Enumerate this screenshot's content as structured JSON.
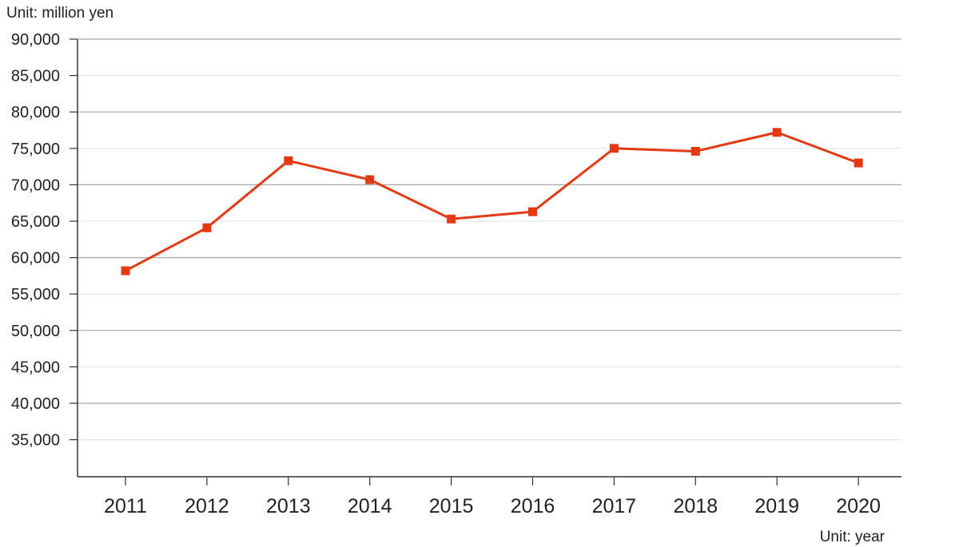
{
  "chart_data": {
    "type": "line",
    "y_unit_label": "Unit: million yen",
    "x_unit_label": "Unit: year",
    "categories": [
      "2011",
      "2012",
      "2013",
      "2014",
      "2015",
      "2016",
      "2017",
      "2018",
      "2019",
      "2020"
    ],
    "series": [
      {
        "values": [
          58200,
          64100,
          73300,
          70700,
          65300,
          66300,
          75000,
          74600,
          77200,
          73000
        ]
      }
    ],
    "y_ticks": [
      35000,
      40000,
      45000,
      50000,
      55000,
      60000,
      65000,
      70000,
      75000,
      80000,
      85000,
      90000
    ],
    "y_tick_labels": [
      "35,000",
      "40,000",
      "45,000",
      "50,000",
      "55,000",
      "60,000",
      "65,000",
      "70,000",
      "75,000",
      "80,000",
      "85,000",
      "90,000"
    ],
    "ylim": [
      30000,
      90000
    ],
    "grid": true,
    "colors": {
      "series": "#e33a13",
      "major_grid": "#a8a8a8",
      "minor_grid": "#e6e6e6",
      "axis": "#333333",
      "text": "#222222"
    }
  }
}
